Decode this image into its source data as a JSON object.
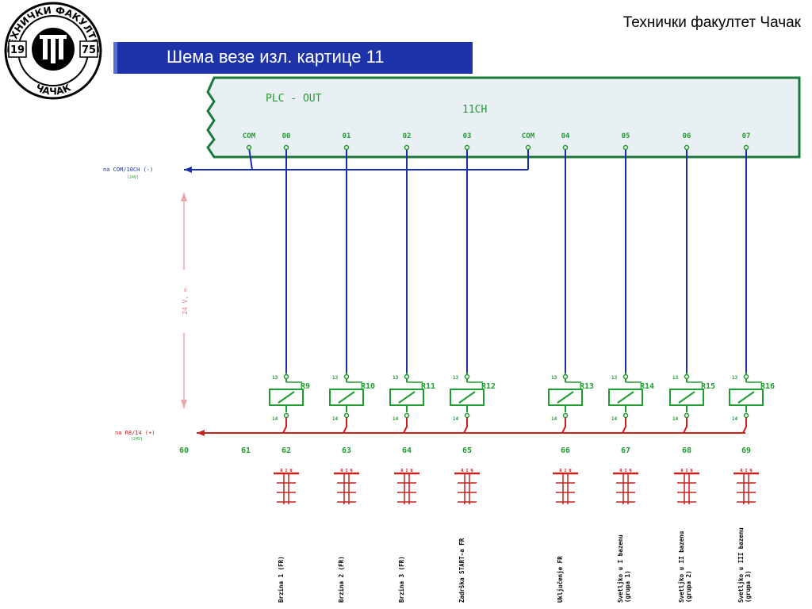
{
  "header": {
    "faculty": "Технички факултет Чачак",
    "title": "Шема везе изл. картице 11"
  },
  "logo": {
    "top_arc": "ТЕХНИЧКИ ФАКУЛТЕТ",
    "bottom_arc": "ЧАЧАК",
    "year_left": "19",
    "year_right": "75"
  },
  "plc": {
    "label": "PLC - OUT",
    "channel": "11CH",
    "terminals": [
      "COM",
      "00",
      "01",
      "02",
      "03",
      "COM",
      "04",
      "05",
      "06",
      "07"
    ]
  },
  "rails": {
    "com_label": "na COM/10CH (-)",
    "com_sub": "(24V)",
    "plus_label": "na R8/14 (+)",
    "plus_sub": "(24V)",
    "voltage": "24 V, ="
  },
  "relays": [
    {
      "name": "R9"
    },
    {
      "name": "R10"
    },
    {
      "name": "R11"
    },
    {
      "name": "R12"
    },
    {
      "name": "R13"
    },
    {
      "name": "R14"
    },
    {
      "name": "R15"
    },
    {
      "name": "R16"
    }
  ],
  "relay_pins": {
    "top": "13",
    "bottom": "14"
  },
  "terminal_numbers": [
    "60",
    "61",
    "62",
    "63",
    "64",
    "65",
    "66",
    "67",
    "68",
    "69"
  ],
  "contact_label": "R I N",
  "loads": [
    [
      "Brzina 1 (FR)"
    ],
    [
      "Brzina 2 (FR)"
    ],
    [
      "Brzina 3 (FR)"
    ],
    [
      "Zadrška START-a FR"
    ],
    [
      "Uključenje FR"
    ],
    [
      "Svetljko u I bazenu",
      "(grupa 1)"
    ],
    [
      "Svetljko u II bazenu",
      "(grupa 2)"
    ],
    [
      "Svetljko u III bazenu",
      "(grupa 3)"
    ]
  ],
  "colors": {
    "banner": "#1f33a8",
    "wire_com": "#1a2fb0",
    "wire_plus": "#c8201a",
    "relay": "#1f9c2f",
    "plc_box": "#e8f0f4",
    "plc_border": "#1a7a3a"
  }
}
